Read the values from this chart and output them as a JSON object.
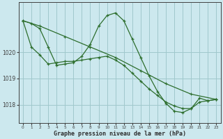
{
  "xlabel": "Graphe pression niveau de la mer (hPa)",
  "background_color": "#cce8ee",
  "plot_bg_color": "#cce8ee",
  "grid_color": "#a0c8cc",
  "line_color": "#2d6e2d",
  "tick_color": "#404040",
  "xlabel_color": "#2d2d2d",
  "ylim": [
    1017.3,
    1021.9
  ],
  "xlim": [
    -0.5,
    23.5
  ],
  "yticks": [
    1018,
    1019,
    1020
  ],
  "xticks": [
    0,
    1,
    2,
    3,
    4,
    5,
    6,
    7,
    8,
    9,
    10,
    11,
    12,
    13,
    14,
    15,
    16,
    17,
    18,
    19,
    20,
    21,
    22,
    23
  ],
  "series": [
    {
      "x": [
        0,
        2,
        5,
        8,
        11,
        14,
        17,
        20,
        23
      ],
      "y": [
        1021.2,
        1021.0,
        1020.6,
        1020.2,
        1019.8,
        1019.3,
        1018.8,
        1018.4,
        1018.2
      ]
    },
    {
      "x": [
        0,
        1,
        2,
        3,
        4,
        5,
        6,
        7,
        8,
        9,
        10,
        11,
        12,
        13,
        14,
        15,
        16,
        17,
        18,
        19,
        20,
        21,
        22,
        23
      ],
      "y": [
        1021.2,
        1021.1,
        1020.9,
        1020.2,
        1019.5,
        1019.55,
        1019.6,
        1019.85,
        1020.3,
        1021.0,
        1021.4,
        1021.5,
        1021.2,
        1020.5,
        1019.8,
        1019.1,
        1018.5,
        1018.05,
        1017.75,
        1017.7,
        1017.85,
        1018.25,
        1018.15,
        1018.2
      ]
    },
    {
      "x": [
        0,
        1,
        2,
        3,
        4,
        5,
        6,
        7,
        8,
        9,
        10,
        11,
        12,
        13,
        14,
        15,
        16,
        17,
        18,
        19,
        20,
        21,
        22,
        23
      ],
      "y": [
        1021.2,
        1020.2,
        1019.9,
        1019.55,
        1019.6,
        1019.65,
        1019.65,
        1019.7,
        1019.75,
        1019.8,
        1019.85,
        1019.7,
        1019.5,
        1019.2,
        1018.9,
        1018.6,
        1018.35,
        1018.1,
        1017.95,
        1017.85,
        1017.85,
        1018.1,
        1018.15,
        1018.2
      ]
    }
  ]
}
